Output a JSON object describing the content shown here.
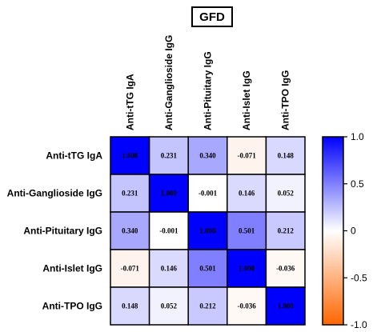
{
  "chart_data": {
    "type": "heatmap",
    "title": "GFD",
    "row_labels": [
      "Anti-tTG IgA",
      "Anti-Ganglioside IgG",
      "Anti-Pituitary IgG",
      "Anti-Islet IgG",
      "Anti-TPO IgG"
    ],
    "col_labels": [
      "Anti-tTG IgA",
      "Anti-Ganglioside IgG",
      "Anti-Pituitary IgG",
      "Anti-Islet IgG",
      "Anti-TPO IgG"
    ],
    "values": [
      [
        1.0,
        0.231,
        0.34,
        -0.071,
        0.148
      ],
      [
        0.231,
        1.0,
        -0.001,
        0.146,
        0.052
      ],
      [
        0.34,
        -0.001,
        1.0,
        0.501,
        0.212
      ],
      [
        -0.071,
        0.146,
        0.501,
        1.0,
        -0.036
      ],
      [
        0.148,
        0.052,
        0.212,
        -0.036,
        1.0
      ]
    ],
    "value_labels": [
      [
        "1.000",
        "0.231",
        "0.340",
        "-0.071",
        "0.148"
      ],
      [
        "0.231",
        "1.000",
        "-0.001",
        "0.146",
        "0.052"
      ],
      [
        "0.340",
        "-0.001",
        "1.000",
        "0.501",
        "0.212"
      ],
      [
        "-0.071",
        "0.146",
        "0.501",
        "1.000",
        "-0.036"
      ],
      [
        "0.148",
        "0.052",
        "0.212",
        "-0.036",
        "1.000"
      ]
    ],
    "colorbar": {
      "range": [
        -1.0,
        1.0
      ],
      "ticks": [
        "1.0",
        "0.5",
        "0",
        "-0.5",
        "-1.0"
      ],
      "tick_values": [
        1.0,
        0.5,
        0,
        -0.5,
        -1.0
      ],
      "positive_color": "#0000ff",
      "zero_color": "#ffffff",
      "negative_color": "#ff6600"
    }
  }
}
